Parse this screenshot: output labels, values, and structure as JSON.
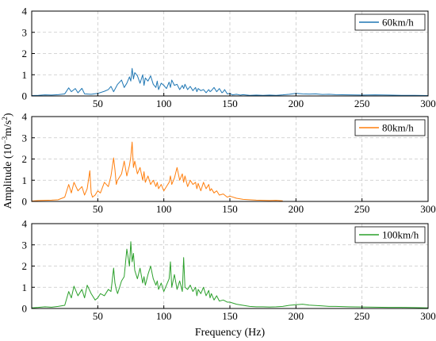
{
  "figure": {
    "ylabel_prefix": "Amplitude (10",
    "ylabel_exp1": "−3",
    "ylabel_unit": "m/s",
    "ylabel_exp2": "2",
    "ylabel_suffix": ")",
    "xlabel": "Frequency (Hz)"
  },
  "chart_data": [
    {
      "type": "line",
      "name": "60km/h",
      "color": "#1f77b4",
      "xlim": [
        0,
        300
      ],
      "ylim": [
        0,
        4
      ],
      "xticks": [
        50,
        100,
        150,
        200,
        250,
        300
      ],
      "yticks": [
        0,
        1,
        2,
        3,
        4
      ],
      "grid": true,
      "legend": "top-right",
      "series": [
        {
          "name": "60km/h",
          "x": [
            0,
            5,
            10,
            15,
            20,
            25,
            28,
            30,
            33,
            35,
            38,
            40,
            45,
            50,
            55,
            58,
            60,
            62,
            65,
            68,
            70,
            72,
            74,
            75,
            76,
            77,
            78,
            80,
            82,
            84,
            85,
            86,
            88,
            90,
            92,
            94,
            95,
            96,
            98,
            100,
            102,
            104,
            105,
            106,
            108,
            110,
            112,
            114,
            115,
            116,
            118,
            120,
            122,
            124,
            125,
            126,
            128,
            130,
            132,
            134,
            135,
            136,
            138,
            140,
            142,
            144,
            145,
            146,
            148,
            150,
            152,
            155,
            158,
            160,
            165,
            170,
            175,
            180,
            185,
            190,
            195,
            200,
            205,
            210,
            215,
            220,
            225,
            230,
            240,
            250,
            260,
            270,
            280,
            290,
            300
          ],
          "y": [
            0.02,
            0.03,
            0.05,
            0.04,
            0.06,
            0.1,
            0.38,
            0.2,
            0.35,
            0.15,
            0.36,
            0.1,
            0.08,
            0.12,
            0.22,
            0.3,
            0.45,
            0.2,
            0.55,
            0.75,
            0.4,
            0.6,
            0.9,
            0.7,
            1.3,
            0.8,
            1.1,
            0.95,
            0.6,
            1.0,
            0.5,
            0.85,
            0.7,
            0.95,
            0.55,
            0.4,
            0.7,
            0.3,
            0.6,
            0.5,
            0.35,
            0.65,
            0.4,
            0.75,
            0.5,
            0.55,
            0.3,
            0.5,
            0.35,
            0.55,
            0.3,
            0.45,
            0.25,
            0.4,
            0.2,
            0.35,
            0.25,
            0.3,
            0.15,
            0.3,
            0.2,
            0.25,
            0.4,
            0.2,
            0.35,
            0.15,
            0.2,
            0.3,
            0.1,
            0.12,
            0.05,
            0.08,
            0.04,
            0.06,
            0.03,
            0.04,
            0.03,
            0.04,
            0.03,
            0.05,
            0.08,
            0.12,
            0.1,
            0.09,
            0.1,
            0.07,
            0.08,
            0.06,
            0.05,
            0.04,
            0.05,
            0.04,
            0.03,
            0.03,
            0.02
          ]
        }
      ]
    },
    {
      "type": "line",
      "name": "80km/h",
      "color": "#ff7f0e",
      "xlim": [
        0,
        300
      ],
      "ylim": [
        0,
        4
      ],
      "xticks": [
        50,
        100,
        150,
        200,
        250,
        300
      ],
      "yticks": [
        0,
        1,
        2,
        3,
        4
      ],
      "grid": true,
      "legend": "top-right",
      "series": [
        {
          "name": "80km/h",
          "x": [
            0,
            5,
            10,
            15,
            20,
            25,
            28,
            30,
            32,
            35,
            38,
            40,
            42,
            44,
            45,
            46,
            48,
            50,
            52,
            55,
            58,
            60,
            62,
            63,
            64,
            65,
            68,
            70,
            72,
            74,
            75,
            76,
            77,
            78,
            80,
            82,
            84,
            85,
            86,
            88,
            90,
            92,
            94,
            95,
            96,
            98,
            100,
            102,
            104,
            105,
            106,
            108,
            110,
            112,
            114,
            115,
            116,
            118,
            120,
            122,
            124,
            125,
            126,
            128,
            130,
            132,
            134,
            135,
            136,
            138,
            140,
            142,
            145,
            148,
            150,
            155,
            160,
            165,
            170,
            175,
            180,
            185,
            190
          ],
          "y": [
            0.02,
            0.04,
            0.05,
            0.06,
            0.08,
            0.2,
            0.8,
            0.4,
            0.9,
            0.5,
            0.7,
            0.3,
            0.6,
            1.45,
            0.4,
            0.2,
            0.3,
            0.5,
            0.4,
            0.9,
            0.7,
            1.2,
            2.05,
            1.5,
            0.8,
            1.0,
            1.3,
            1.9,
            1.2,
            1.7,
            2.1,
            2.8,
            1.6,
            1.9,
            1.3,
            1.6,
            1.0,
            1.4,
            0.9,
            1.2,
            0.8,
            1.0,
            0.7,
            0.9,
            0.6,
            0.8,
            0.5,
            0.7,
            0.9,
            1.2,
            0.8,
            1.1,
            1.6,
            1.0,
            1.3,
            0.9,
            1.2,
            0.7,
            1.0,
            0.8,
            0.9,
            0.6,
            0.85,
            0.5,
            0.9,
            0.6,
            0.8,
            0.5,
            0.6,
            0.4,
            0.5,
            0.3,
            0.35,
            0.2,
            0.25,
            0.15,
            0.1,
            0.08,
            0.06,
            0.05,
            0.04,
            0.05,
            0.03
          ]
        }
      ]
    },
    {
      "type": "line",
      "name": "100km/h",
      "color": "#2ca02c",
      "xlim": [
        0,
        300
      ],
      "ylim": [
        0,
        4
      ],
      "xticks": [
        50,
        100,
        150,
        200,
        250,
        300
      ],
      "yticks": [
        0,
        1,
        2,
        3,
        4
      ],
      "grid": true,
      "legend": "top-right",
      "series": [
        {
          "name": "100km/h",
          "x": [
            0,
            5,
            10,
            15,
            20,
            25,
            28,
            30,
            32,
            35,
            38,
            40,
            42,
            45,
            48,
            50,
            52,
            55,
            58,
            60,
            62,
            63,
            64,
            65,
            68,
            70,
            72,
            74,
            75,
            76,
            77,
            78,
            80,
            82,
            84,
            85,
            86,
            88,
            90,
            92,
            94,
            95,
            96,
            98,
            100,
            102,
            104,
            105,
            106,
            108,
            110,
            112,
            114,
            115,
            116,
            118,
            120,
            122,
            124,
            125,
            126,
            128,
            130,
            132,
            134,
            135,
            136,
            138,
            140,
            142,
            145,
            148,
            150,
            155,
            160,
            165,
            170,
            175,
            180,
            185,
            190,
            195,
            200,
            205,
            210,
            215,
            220,
            225,
            230,
            240,
            250,
            260,
            270,
            280,
            290,
            300
          ],
          "y": [
            0.03,
            0.05,
            0.08,
            0.06,
            0.1,
            0.15,
            0.8,
            0.5,
            1.05,
            0.6,
            0.9,
            0.5,
            1.1,
            0.7,
            0.4,
            0.5,
            0.7,
            0.6,
            0.9,
            0.8,
            1.9,
            1.2,
            0.9,
            0.7,
            1.3,
            1.5,
            2.8,
            2.0,
            3.15,
            2.2,
            2.6,
            1.8,
            1.4,
            1.9,
            1.2,
            1.5,
            1.1,
            1.6,
            2.0,
            1.4,
            1.1,
            1.3,
            0.9,
            1.2,
            0.8,
            1.1,
            1.4,
            2.2,
            1.0,
            1.6,
            0.9,
            1.3,
            0.8,
            2.4,
            1.0,
            0.9,
            1.1,
            0.8,
            1.0,
            0.6,
            0.9,
            0.7,
            1.0,
            0.6,
            0.85,
            0.5,
            0.7,
            0.4,
            0.6,
            0.35,
            0.4,
            0.3,
            0.3,
            0.2,
            0.15,
            0.1,
            0.08,
            0.08,
            0.07,
            0.08,
            0.1,
            0.15,
            0.18,
            0.2,
            0.16,
            0.14,
            0.12,
            0.1,
            0.1,
            0.08,
            0.07,
            0.06,
            0.05,
            0.05,
            0.04,
            0.03
          ]
        }
      ]
    }
  ]
}
